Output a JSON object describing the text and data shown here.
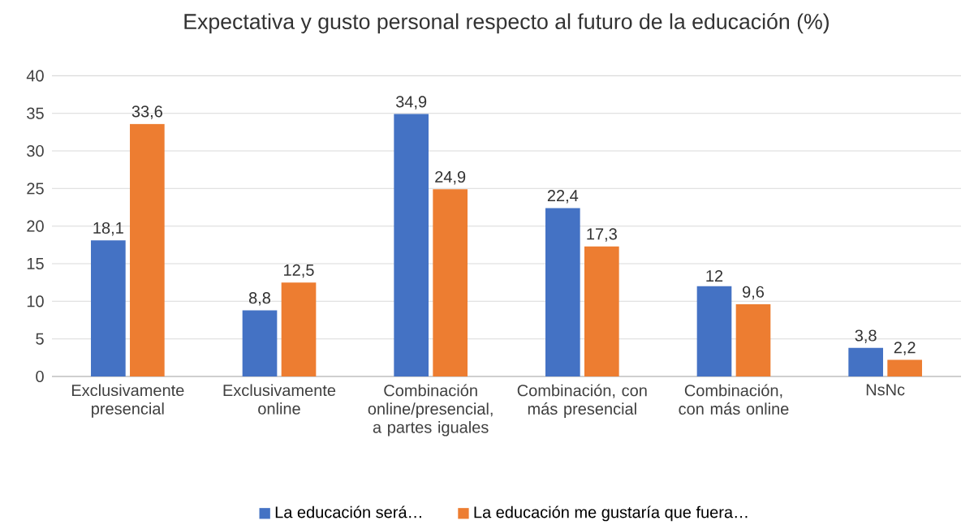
{
  "chart_data": {
    "type": "bar",
    "title": "Expectativa y gusto personal respecto al futuro de la educación (%)",
    "categories": [
      "Exclusivamente presencial",
      "Exclusivamente online",
      "Combinación online/presencial, a partes iguales",
      "Combinación, con más presencial",
      "Combinación, con más online",
      "NsNc"
    ],
    "series": [
      {
        "name": "La educación será…",
        "color": "#4472c4",
        "values": [
          18.1,
          8.8,
          34.9,
          22.4,
          12,
          3.8
        ],
        "value_labels": [
          "18,1",
          "8,8",
          "34,9",
          "22,4",
          "12",
          "3,8"
        ]
      },
      {
        "name": "La educación me gustaría que fuera…",
        "color": "#ed7d31",
        "values": [
          33.6,
          12.5,
          24.9,
          17.3,
          9.6,
          2.2
        ],
        "value_labels": [
          "33,6",
          "12,5",
          "24,9",
          "17,3",
          "9,6",
          "2,2"
        ]
      }
    ],
    "ylim": [
      0,
      40
    ],
    "yticks": [
      0,
      5,
      10,
      15,
      20,
      25,
      30,
      35,
      40
    ],
    "grid": "y",
    "legend": "bottom"
  }
}
